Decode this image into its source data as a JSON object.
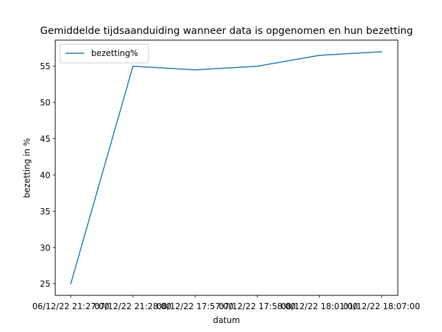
{
  "chart_data": {
    "type": "line",
    "title": "Gemiddelde tijdsaanduiding wanneer data is opgenomen en hun bezetting",
    "xlabel": "datum",
    "ylabel": "bezetting in %",
    "categories": [
      "06/12/22 21:27:00",
      "07/12/22 21:28:00",
      "08/12/22 17:57:00",
      "07/12/22 17:58:00",
      "08/12/22 18:01:00",
      "01/12/22 18:07:00"
    ],
    "series": [
      {
        "name": "bezetting%",
        "color": "#1f77b4",
        "values": [
          25.0,
          55.0,
          54.5,
          55.0,
          56.5,
          57.0
        ]
      }
    ],
    "ylim": [
      23.4,
      58.6
    ],
    "yticks": [
      25,
      30,
      35,
      40,
      45,
      50,
      55
    ],
    "grid": false,
    "legend_position": "upper-left"
  }
}
